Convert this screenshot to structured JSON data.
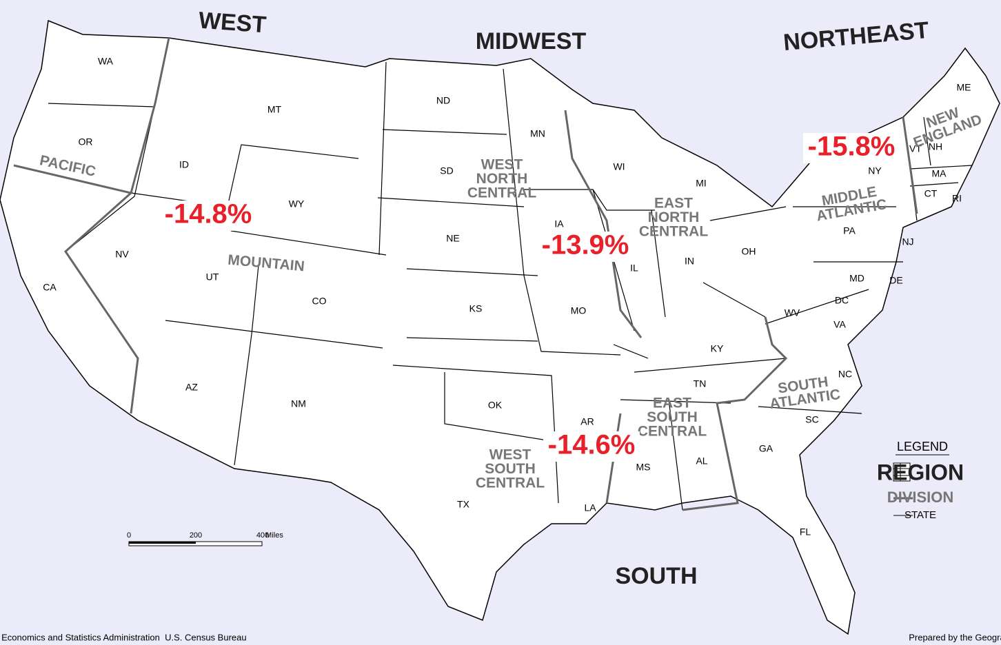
{
  "regions": [
    "WEST",
    "MIDWEST",
    "NORTHEAST",
    "SOUTH"
  ],
  "divisions": [
    [
      "PACIFIC"
    ],
    [
      "MOUNTAIN"
    ],
    [
      "WEST",
      "NORTH",
      "CENTRAL"
    ],
    [
      "EAST",
      "NORTH",
      "CENTRAL"
    ],
    [
      "NEW",
      "ENGLAND"
    ],
    [
      "MIDDLE",
      "ATLANTIC"
    ],
    [
      "SOUTH",
      "ATLANTIC"
    ],
    [
      "EAST",
      "SOUTH",
      "CENTRAL"
    ],
    [
      "WEST",
      "SOUTH",
      "CENTRAL"
    ]
  ],
  "states": [
    "WA",
    "OR",
    "CA",
    "NV",
    "ID",
    "MT",
    "WY",
    "UT",
    "CO",
    "AZ",
    "NM",
    "ND",
    "SD",
    "NE",
    "KS",
    "MN",
    "IA",
    "MO",
    "WI",
    "IL",
    "MI",
    "IN",
    "OH",
    "KY",
    "TN",
    "MS",
    "AL",
    "GA",
    "FL",
    "SC",
    "NC",
    "VA",
    "WV",
    "MD",
    "DE",
    "DC",
    "PA",
    "NY",
    "NJ",
    "CT",
    "RI",
    "MA",
    "VT",
    "NH",
    "ME",
    "OK",
    "TX",
    "AR",
    "LA"
  ],
  "annotations": [
    "-14.8%",
    "-13.9%",
    "-14.6%",
    "-15.8%"
  ],
  "legend": {
    "title": "LEGEND",
    "items": [
      "REGION",
      "DIVISION",
      "STATE"
    ]
  },
  "scale": {
    "ticks": [
      "0",
      "200",
      "400"
    ],
    "unit": "Miles"
  },
  "footer": {
    "left": "U.S. Department of Commerce  Economics and Statistics Administration  U.S. Census Bureau",
    "right": "Prepared by the Geography Division"
  }
}
